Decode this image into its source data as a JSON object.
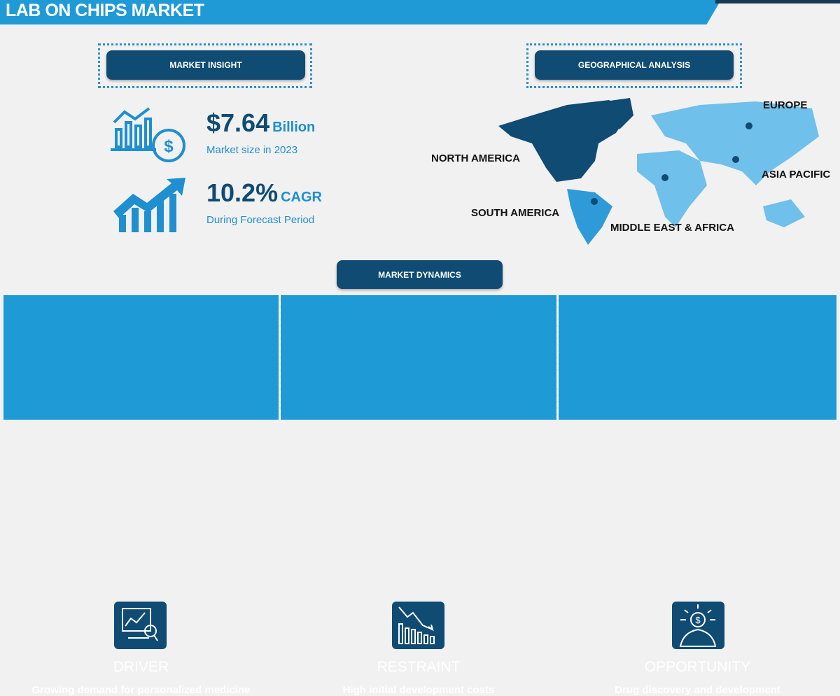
{
  "header": {
    "title": "LAB ON CHIPS MARKET"
  },
  "insight": {
    "heading": "MARKET INSIGHT",
    "market_size_value": "$7.64",
    "market_size_unit": "Billion",
    "market_size_caption": "Market size in 2023",
    "cagr_value": "10.2%",
    "cagr_unit": "CAGR",
    "cagr_caption": "During Forecast Period"
  },
  "geo": {
    "heading": "GEOGRAPHICAL ANALYSIS",
    "regions": [
      "NORTH AMERICA",
      "EUROPE",
      "ASIA PACIFIC",
      "SOUTH AMERICA",
      "MIDDLE EAST & AFRICA"
    ]
  },
  "dynamics": {
    "heading": "MARKET DYNAMICS",
    "items": [
      {
        "title": "DRIVER",
        "text": "Growing demand for personalized medicine",
        "icon": "chart-magnifier-icon"
      },
      {
        "title": "RESTRAINT",
        "text": "High initial development costs",
        "icon": "declining-chart-icon"
      },
      {
        "title": "OPPORTUNITY",
        "text": "Drug discovery and development",
        "icon": "dollar-lightbulb-icon"
      }
    ]
  },
  "colors": {
    "primary": "#1e9ad6",
    "navy": "#0f4b73",
    "background": "#f1f1f1"
  }
}
